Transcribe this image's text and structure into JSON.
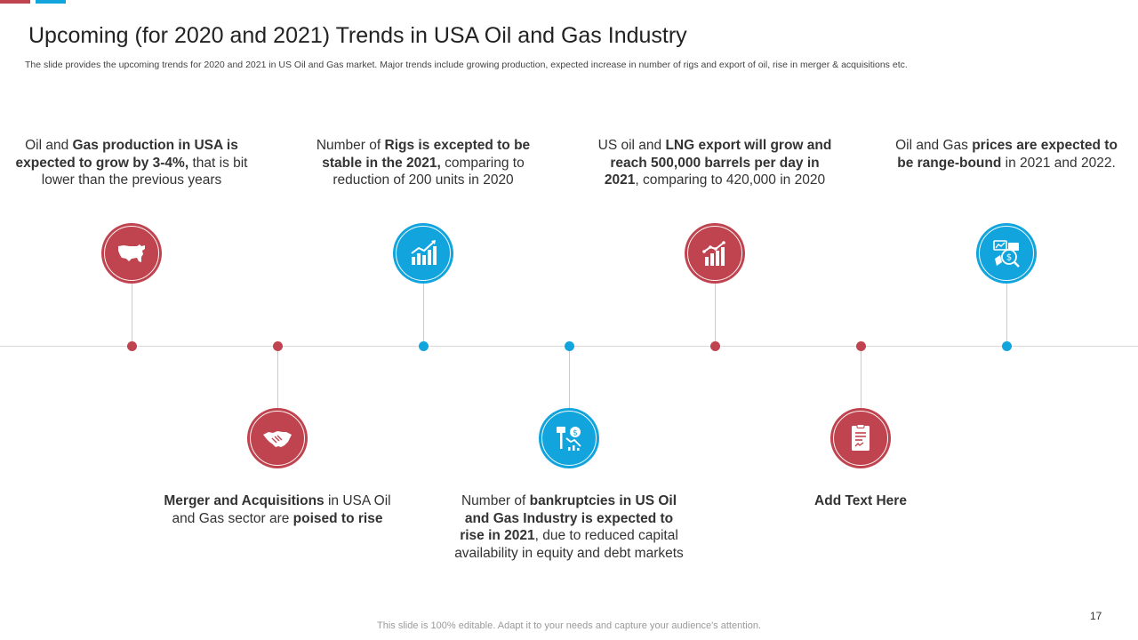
{
  "slide": {
    "title": "Upcoming (for 2020 and 2021) Trends in USA Oil and Gas Industry",
    "subtitle": "The slide provides the upcoming trends for 2020 and 2021 in US Oil and Gas market. Major trends include growing production, expected increase in number of rigs and export of oil, rise in merger & acquisitions etc.",
    "footer": "This slide is 100% editable. Adapt it to your needs and capture your audience's attention.",
    "page_number": "17"
  },
  "colors": {
    "red": "#c0444f",
    "blue": "#12a4dd",
    "line": "#d9d9d9"
  },
  "trends": [
    {
      "icon": "usa-map-icon",
      "position": "top",
      "lines": [
        [
          {
            "t": "Oil and ",
            "b": false
          },
          {
            "t": "Gas production in USA is",
            "b": true
          }
        ],
        [
          {
            "t": "expected to grow by 3-4%,",
            "b": true
          },
          {
            "t": " that  is bit",
            "b": false
          }
        ],
        [
          {
            "t": "lower than  the previous years",
            "b": false
          }
        ]
      ]
    },
    {
      "icon": "handshake-icon",
      "position": "bottom",
      "lines": [
        [
          {
            "t": "Merger and Acquisitions",
            "b": true
          },
          {
            "t": " in USA Oil",
            "b": false
          }
        ],
        [
          {
            "t": "and Gas sector are ",
            "b": false
          },
          {
            "t": "poised to rise",
            "b": true
          }
        ]
      ]
    },
    {
      "icon": "growth-chart-icon",
      "position": "top",
      "lines": [
        [
          {
            "t": "Number of ",
            "b": false
          },
          {
            "t": "Rigs is excepted to be",
            "b": true
          }
        ],
        [
          {
            "t": "stable in the 2021,",
            "b": true
          },
          {
            "t": " comparing to",
            "b": false
          }
        ],
        [
          {
            "t": "reduction of 200 units in 2020",
            "b": false
          }
        ]
      ]
    },
    {
      "icon": "bankruptcy-icon",
      "position": "bottom",
      "lines": [
        [
          {
            "t": "Number of ",
            "b": false
          },
          {
            "t": "bankruptcies in US Oil",
            "b": true
          }
        ],
        [
          {
            "t": "and Gas Industry is expected to",
            "b": true
          }
        ],
        [
          {
            "t": "rise in 2021",
            "b": true
          },
          {
            "t": ", due to reduced capital",
            "b": false
          }
        ],
        [
          {
            "t": "availability in equity and debt markets",
            "b": false
          }
        ]
      ]
    },
    {
      "icon": "bar-chart-icon",
      "position": "top",
      "lines": [
        [
          {
            "t": "US oil and ",
            "b": false
          },
          {
            "t": "LNG export will grow and",
            "b": true
          }
        ],
        [
          {
            "t": "reach 500,000 barrels per day in",
            "b": true
          }
        ],
        [
          {
            "t": "2021",
            "b": true
          },
          {
            "t": ", comparing to 420,000 in 2020",
            "b": false
          }
        ]
      ]
    },
    {
      "icon": "document-icon",
      "position": "bottom",
      "lines": [
        [
          {
            "t": "Add Text Here",
            "b": true
          }
        ]
      ]
    },
    {
      "icon": "price-analysis-icon",
      "position": "top",
      "lines": [
        [
          {
            "t": "Oil and Gas ",
            "b": false
          },
          {
            "t": "prices are expected to",
            "b": true
          }
        ],
        [
          {
            "t": "be range-bound",
            "b": true
          },
          {
            "t": " in 2021 and 2022.",
            "b": false
          }
        ]
      ]
    }
  ]
}
